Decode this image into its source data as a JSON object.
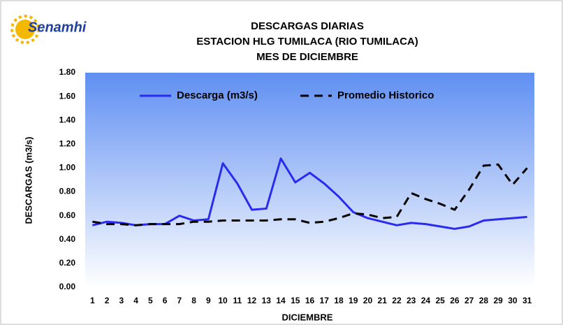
{
  "logo": "Senamhi",
  "chart_data": {
    "type": "line",
    "title": [
      "DESCARGAS DIARIAS",
      "ESTACION HLG  TUMILACA (RIO  TUMILACA)",
      "MES DE DICIEMBRE"
    ],
    "x_label": "DICIEMBRE",
    "y_label": "DESCARGAS (m3/s)",
    "categories": [
      "1",
      "2",
      "3",
      "4",
      "5",
      "6",
      "7",
      "8",
      "9",
      "10",
      "11",
      "12",
      "13",
      "14",
      "15",
      "16",
      "17",
      "18",
      "19",
      "20",
      "21",
      "22",
      "23",
      "24",
      "25",
      "26",
      "27",
      "28",
      "29",
      "30",
      "31"
    ],
    "series": [
      {
        "name": "Descarga (m3/s)",
        "color": "#2b2bf0",
        "dashed": false,
        "values": [
          0.52,
          0.55,
          0.54,
          0.52,
          0.53,
          0.53,
          0.6,
          0.56,
          0.57,
          1.04,
          0.87,
          0.65,
          0.66,
          1.08,
          0.88,
          0.96,
          0.87,
          0.76,
          0.63,
          0.58,
          0.55,
          0.52,
          0.54,
          0.53,
          0.51,
          0.49,
          0.51,
          0.56,
          0.57,
          0.58,
          0.59
        ]
      },
      {
        "name": "Promedio Historico",
        "color": "#000000",
        "dashed": true,
        "values": [
          0.55,
          0.53,
          0.53,
          0.52,
          0.53,
          0.53,
          0.53,
          0.55,
          0.55,
          0.56,
          0.56,
          0.56,
          0.56,
          0.57,
          0.57,
          0.54,
          0.55,
          0.58,
          0.62,
          0.61,
          0.58,
          0.59,
          0.79,
          0.74,
          0.7,
          0.65,
          0.82,
          1.02,
          1.03,
          0.86,
          1.0
        ]
      }
    ],
    "ylim": [
      0,
      1.8
    ],
    "yticks": [
      {
        "value": 0,
        "label": "0.00"
      },
      {
        "value": 0.2,
        "label": "0.20"
      },
      {
        "value": 0.4,
        "label": "0.40"
      },
      {
        "value": 0.6,
        "label": "0.60"
      },
      {
        "value": 0.8,
        "label": "0.80"
      },
      {
        "value": 1.0,
        "label": "1.00"
      },
      {
        "value": 1.2,
        "label": "1.20"
      },
      {
        "value": 1.4,
        "label": "1.40"
      },
      {
        "value": 1.6,
        "label": "1.60"
      },
      {
        "value": 1.8,
        "label": "1.80"
      }
    ],
    "legend": "top"
  }
}
